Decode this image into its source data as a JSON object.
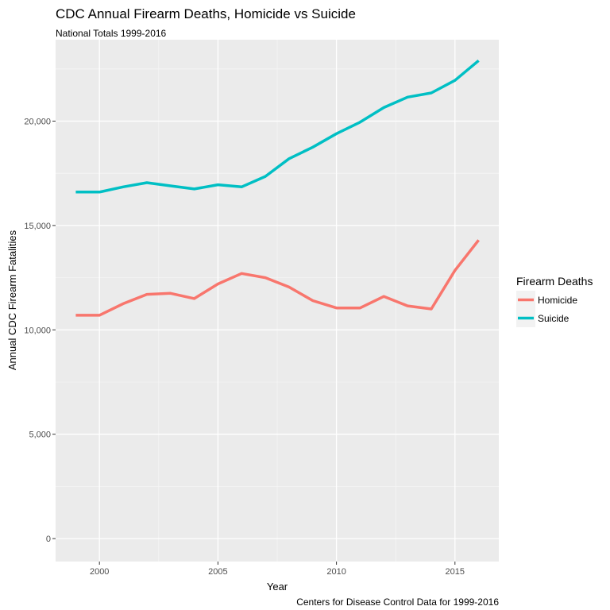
{
  "chart_data": {
    "type": "line",
    "title": "CDC Annual Firearm Deaths, Homicide vs Suicide",
    "subtitle": "National Totals 1999-2016",
    "xlabel": "Year",
    "ylabel": "Annual CDC Firearm Fatalities",
    "caption": "Centers for Disease Control Data for 1999-2016",
    "xlim": [
      1998.15,
      2016.85
    ],
    "ylim": [
      -1100,
      23900
    ],
    "x_ticks": [
      2000,
      2005,
      2010,
      2015
    ],
    "x_tick_labels": [
      "2000",
      "2005",
      "2010",
      "2015"
    ],
    "y_ticks": [
      0,
      5000,
      10000,
      15000,
      20000
    ],
    "y_tick_labels": [
      "0",
      "5,000",
      "10,000",
      "15,000",
      "20,000"
    ],
    "x": [
      1999,
      2000,
      2001,
      2002,
      2003,
      2004,
      2005,
      2006,
      2007,
      2008,
      2009,
      2010,
      2011,
      2012,
      2013,
      2014,
      2015,
      2016
    ],
    "series": [
      {
        "name": "Homicide",
        "color": "#F8766D",
        "values": [
          10700,
          10700,
          11250,
          11700,
          11750,
          11500,
          12200,
          12700,
          12500,
          12050,
          11400,
          11050,
          11050,
          11600,
          11150,
          11000,
          12850,
          14300
        ]
      },
      {
        "name": "Suicide",
        "color": "#00BFC4",
        "values": [
          16600,
          16600,
          16850,
          17050,
          16900,
          16750,
          16950,
          16850,
          17350,
          18200,
          18750,
          19400,
          19950,
          20650,
          21150,
          21350,
          21950,
          22900
        ]
      }
    ],
    "legend": {
      "title": "Firearm Deaths",
      "position": "right",
      "entries": [
        "Homicide",
        "Suicide"
      ]
    },
    "grid": true
  }
}
